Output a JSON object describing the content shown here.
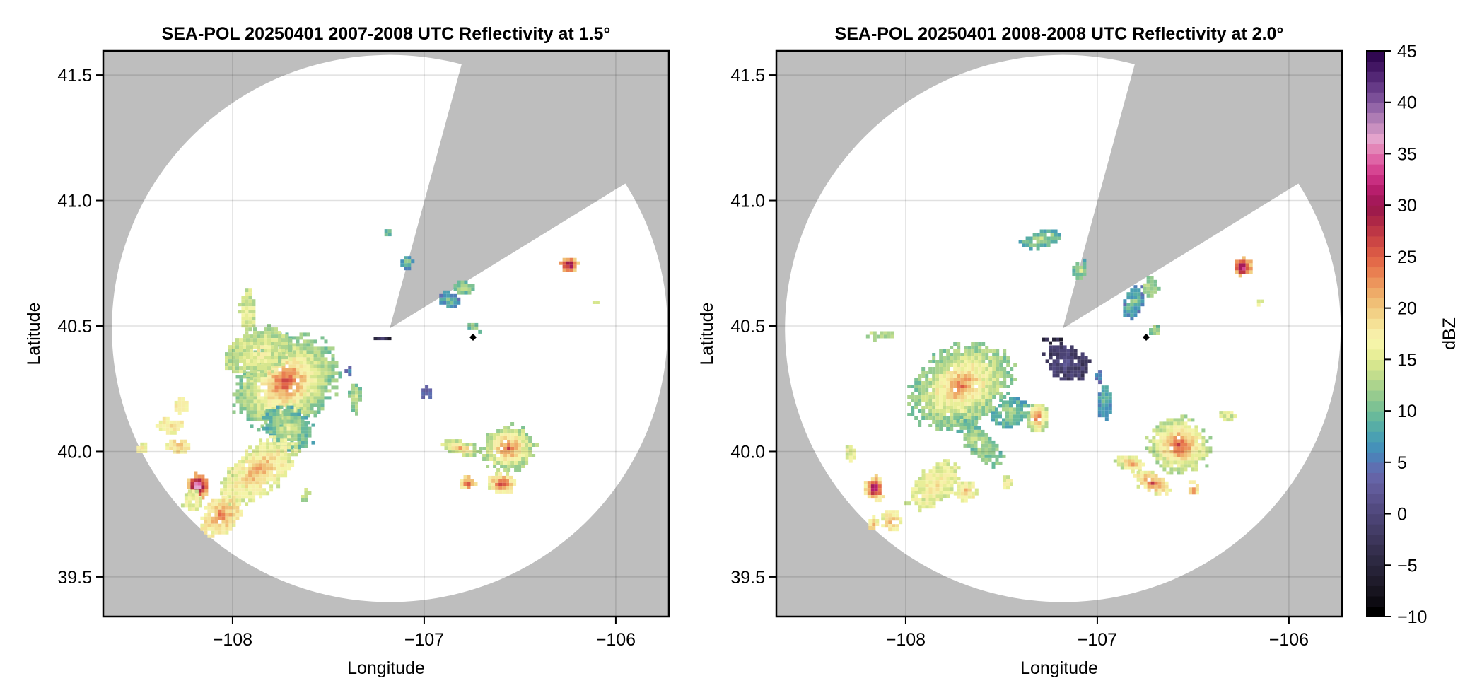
{
  "figure": {
    "colorbar": {
      "label": "dBZ",
      "range": [
        -10,
        45
      ],
      "ticks": [
        -10,
        -5,
        0,
        5,
        10,
        15,
        20,
        25,
        30,
        35,
        40,
        45
      ],
      "tick_labels": [
        "−10",
        "−5",
        "0",
        "5",
        "10",
        "15",
        "20",
        "25",
        "30",
        "35",
        "40",
        "45"
      ],
      "levels": 55,
      "colors": [
        "#000000",
        "#0d0b12",
        "#17141f",
        "#1f1b2b",
        "#262237",
        "#2d2942",
        "#352f4e",
        "#3d365b",
        "#443d67",
        "#4b4374",
        "#524a80",
        "#5a528d",
        "#615b9a",
        "#6564a7",
        "#5e6fb1",
        "#4e80b8",
        "#4591b9",
        "#4aa0b2",
        "#57ada6",
        "#68b99b",
        "#7ec293",
        "#96cb8f",
        "#acd48d",
        "#c2dd8d",
        "#d6e68e",
        "#e8ee98",
        "#f5f4a8",
        "#f7eea8",
        "#f5e196",
        "#f2d186",
        "#f0bf76",
        "#eeab68",
        "#ec955c",
        "#e97f51",
        "#e36a49",
        "#d95845",
        "#cc4644",
        "#bd3645",
        "#ad2746",
        "#9e1b4b",
        "#a5195a",
        "#b71e6c",
        "#c82e80",
        "#d64592",
        "#df64a6",
        "#e385b7",
        "#e4a3cc",
        "#c990c0",
        "#ae7cb4",
        "#9466a8",
        "#7b4f98",
        "#663a87",
        "#532775",
        "#421663",
        "#310852"
      ]
    },
    "panels": [
      {
        "title": "SEA-POL 20250401 2007-2008 UTC Reflectivity at 1.5°",
        "xlabel": "Longitude",
        "ylabel": "Latitude",
        "xticks": [
          -108,
          -107,
          -106
        ],
        "xtick_labels": [
          "−108",
          "−107",
          "−106"
        ],
        "yticks": [
          39.5,
          40.0,
          40.5,
          41.0,
          41.5
        ],
        "ytick_labels": [
          "39.5",
          "40.0",
          "40.5",
          "41.0",
          "41.5"
        ]
      },
      {
        "title": "SEA-POL 20250401 2008-2008 UTC Reflectivity at 2.0°",
        "xlabel": "Longitude",
        "ylabel": "Latitude",
        "xticks": [
          -108,
          -107,
          -106
        ],
        "xtick_labels": [
          "−108",
          "−107",
          "−106"
        ],
        "yticks": [
          39.5,
          40.0,
          40.5,
          41.0,
          41.5
        ],
        "ytick_labels": [
          "39.5",
          "40.0",
          "40.5",
          "41.0",
          "41.5"
        ]
      }
    ]
  },
  "chart_data": [
    {
      "type": "heatmap",
      "title": "SEA-POL 20250401 2007-2008 UTC Reflectivity at 1.5°",
      "xlabel": "Longitude",
      "ylabel": "Latitude",
      "xlim": [
        -108.675,
        -105.723
      ],
      "ylim": [
        39.342,
        41.596
      ],
      "grid": true,
      "colorbar": "right",
      "value_units": "dBZ",
      "background_missing_color": "#bebebe",
      "radar": {
        "center_lon": -107.18,
        "center_lat": 40.49,
        "range_lon_deg": 1.45,
        "range_lat_deg": 1.09,
        "blocked_sector_azimuth_deg": [
          15,
          58
        ]
      },
      "marker": {
        "symbol": "diamond",
        "lon": -106.745,
        "lat": 40.455,
        "color": "#000000"
      },
      "echoes": [
        {
          "lon": -107.73,
          "lat": 40.28,
          "dlon": 0.28,
          "dlat": 0.17,
          "tilt": -35,
          "peak": 26,
          "base": 11
        },
        {
          "lon": -107.88,
          "lat": 40.4,
          "dlon": 0.18,
          "dlat": 0.09,
          "tilt": -20,
          "peak": 17,
          "base": 13
        },
        {
          "lon": -107.93,
          "lat": 40.56,
          "dlon": 0.04,
          "dlat": 0.09,
          "tilt": 0,
          "peak": 16,
          "base": 14
        },
        {
          "lon": -107.72,
          "lat": 40.1,
          "dlon": 0.14,
          "dlat": 0.08,
          "tilt": 40,
          "peak": 15,
          "base": 9
        },
        {
          "lon": -107.87,
          "lat": 39.93,
          "dlon": 0.12,
          "dlat": 0.18,
          "tilt": 50,
          "peak": 22,
          "base": 15
        },
        {
          "lon": -108.07,
          "lat": 39.75,
          "dlon": 0.09,
          "dlat": 0.09,
          "tilt": 40,
          "peak": 24,
          "base": 17
        },
        {
          "lon": -108.19,
          "lat": 39.87,
          "dlon": 0.06,
          "dlat": 0.05,
          "tilt": 0,
          "peak": 40,
          "base": 20
        },
        {
          "lon": -108.22,
          "lat": 39.81,
          "dlon": 0.05,
          "dlat": 0.04,
          "tilt": 0,
          "peak": 17,
          "base": 15
        },
        {
          "lon": -108.29,
          "lat": 40.03,
          "dlon": 0.06,
          "dlat": 0.03,
          "tilt": 0,
          "peak": 21,
          "base": 17
        },
        {
          "lon": -108.33,
          "lat": 40.11,
          "dlon": 0.07,
          "dlat": 0.03,
          "tilt": 0,
          "peak": 19,
          "base": 17
        },
        {
          "lon": -108.27,
          "lat": 40.19,
          "dlon": 0.04,
          "dlat": 0.03,
          "tilt": 0,
          "peak": 20,
          "base": 17
        },
        {
          "lon": -108.48,
          "lat": 40.02,
          "dlon": 0.03,
          "dlat": 0.02,
          "tilt": 0,
          "peak": 17,
          "base": 16
        },
        {
          "lon": -107.37,
          "lat": 40.22,
          "dlon": 0.03,
          "dlat": 0.06,
          "tilt": 0,
          "peak": 16,
          "base": 11
        },
        {
          "lon": -107.4,
          "lat": 40.33,
          "dlon": 0.02,
          "dlat": 0.02,
          "tilt": 0,
          "peak": 5,
          "base": 4
        },
        {
          "lon": -107.0,
          "lat": 40.24,
          "dlon": 0.03,
          "dlat": 0.03,
          "tilt": 0,
          "peak": 5,
          "base": 4
        },
        {
          "lon": -106.57,
          "lat": 40.02,
          "dlon": 0.14,
          "dlat": 0.09,
          "tilt": 0,
          "peak": 26,
          "base": 12
        },
        {
          "lon": -106.82,
          "lat": 40.02,
          "dlon": 0.1,
          "dlat": 0.03,
          "tilt": 10,
          "peak": 22,
          "base": 13
        },
        {
          "lon": -106.6,
          "lat": 39.88,
          "dlon": 0.08,
          "dlat": 0.04,
          "tilt": 0,
          "peak": 28,
          "base": 16
        },
        {
          "lon": -106.78,
          "lat": 39.88,
          "dlon": 0.04,
          "dlat": 0.03,
          "tilt": 0,
          "peak": 25,
          "base": 18
        },
        {
          "lon": -106.25,
          "lat": 40.75,
          "dlon": 0.05,
          "dlat": 0.035,
          "tilt": 0,
          "peak": 33,
          "base": 20
        },
        {
          "lon": -106.12,
          "lat": 40.6,
          "dlon": 0.015,
          "dlat": 0.012,
          "tilt": 0,
          "peak": 16,
          "base": 16
        },
        {
          "lon": -106.88,
          "lat": 40.61,
          "dlon": 0.06,
          "dlat": 0.03,
          "tilt": 20,
          "peak": 12,
          "base": 6
        },
        {
          "lon": -106.8,
          "lat": 40.66,
          "dlon": 0.05,
          "dlat": 0.025,
          "tilt": 0,
          "peak": 14,
          "base": 10
        },
        {
          "lon": -106.74,
          "lat": 40.5,
          "dlon": 0.04,
          "dlat": 0.015,
          "tilt": 15,
          "peak": 13,
          "base": 10
        },
        {
          "lon": -107.1,
          "lat": 40.76,
          "dlon": 0.03,
          "dlat": 0.025,
          "tilt": 0,
          "peak": 14,
          "base": 7
        },
        {
          "lon": -107.23,
          "lat": 40.46,
          "dlon": 0.04,
          "dlat": 0.01,
          "tilt": 0,
          "peak": 0,
          "base": -5
        },
        {
          "lon": -107.2,
          "lat": 40.88,
          "dlon": 0.02,
          "dlat": 0.01,
          "tilt": 0,
          "peak": 12,
          "base": 10
        },
        {
          "lon": -107.63,
          "lat": 39.83,
          "dlon": 0.02,
          "dlat": 0.03,
          "tilt": 30,
          "peak": 15,
          "base": 13
        }
      ]
    },
    {
      "type": "heatmap",
      "title": "SEA-POL 20250401 2008-2008 UTC Reflectivity at 2.0°",
      "xlabel": "Longitude",
      "ylabel": "Latitude",
      "xlim": [
        -108.675,
        -105.723
      ],
      "ylim": [
        39.342,
        41.596
      ],
      "grid": true,
      "colorbar": "right",
      "value_units": "dBZ",
      "background_missing_color": "#bebebe",
      "radar": {
        "center_lon": -107.18,
        "center_lat": 40.49,
        "range_lon_deg": 1.45,
        "range_lat_deg": 1.09,
        "blocked_sector_azimuth_deg": [
          15,
          58
        ]
      },
      "marker": {
        "symbol": "diamond",
        "lon": -106.745,
        "lat": 40.455,
        "color": "#000000"
      },
      "echoes": [
        {
          "lon": -107.72,
          "lat": 40.27,
          "dlon": 0.28,
          "dlat": 0.15,
          "tilt": -30,
          "peak": 24,
          "base": 11
        },
        {
          "lon": -107.32,
          "lat": 40.14,
          "dlon": 0.06,
          "dlat": 0.06,
          "tilt": 0,
          "peak": 26,
          "base": 13
        },
        {
          "lon": -107.46,
          "lat": 40.16,
          "dlon": 0.1,
          "dlat": 0.06,
          "tilt": -10,
          "peak": 14,
          "base": 8
        },
        {
          "lon": -107.62,
          "lat": 40.04,
          "dlon": 0.16,
          "dlat": 0.05,
          "tilt": 45,
          "peak": 14,
          "base": 10
        },
        {
          "lon": -107.86,
          "lat": 39.87,
          "dlon": 0.09,
          "dlat": 0.12,
          "tilt": 50,
          "peak": 18,
          "base": 15
        },
        {
          "lon": -108.08,
          "lat": 39.73,
          "dlon": 0.05,
          "dlat": 0.05,
          "tilt": 0,
          "peak": 23,
          "base": 16
        },
        {
          "lon": -108.17,
          "lat": 39.86,
          "dlon": 0.05,
          "dlat": 0.05,
          "tilt": 0,
          "peak": 38,
          "base": 18
        },
        {
          "lon": -108.18,
          "lat": 39.72,
          "dlon": 0.03,
          "dlat": 0.03,
          "tilt": 0,
          "peak": 21,
          "base": 17
        },
        {
          "lon": -108.3,
          "lat": 40.0,
          "dlon": 0.03,
          "dlat": 0.03,
          "tilt": 0,
          "peak": 16,
          "base": 15
        },
        {
          "lon": -108.14,
          "lat": 40.47,
          "dlon": 0.08,
          "dlat": 0.02,
          "tilt": 0,
          "peak": 14,
          "base": 12
        },
        {
          "lon": -107.17,
          "lat": 40.36,
          "dlon": 0.12,
          "dlat": 0.07,
          "tilt": 30,
          "peak": 2,
          "base": -2
        },
        {
          "lon": -106.97,
          "lat": 40.2,
          "dlon": 0.04,
          "dlat": 0.07,
          "tilt": 0,
          "peak": 10,
          "base": 7
        },
        {
          "lon": -107.0,
          "lat": 40.3,
          "dlon": 0.02,
          "dlat": 0.03,
          "tilt": 0,
          "peak": 5,
          "base": 5
        },
        {
          "lon": -106.58,
          "lat": 40.03,
          "dlon": 0.16,
          "dlat": 0.11,
          "tilt": 15,
          "peak": 27,
          "base": 13
        },
        {
          "lon": -106.83,
          "lat": 39.96,
          "dlon": 0.08,
          "dlat": 0.03,
          "tilt": 15,
          "peak": 22,
          "base": 14
        },
        {
          "lon": -106.72,
          "lat": 39.88,
          "dlon": 0.1,
          "dlat": 0.04,
          "tilt": 25,
          "peak": 26,
          "base": 16
        },
        {
          "lon": -106.51,
          "lat": 39.86,
          "dlon": 0.03,
          "dlat": 0.03,
          "tilt": 0,
          "peak": 26,
          "base": 18
        },
        {
          "lon": -106.33,
          "lat": 40.15,
          "dlon": 0.04,
          "dlat": 0.025,
          "tilt": 0,
          "peak": 16,
          "base": 14
        },
        {
          "lon": -107.69,
          "lat": 39.85,
          "dlon": 0.06,
          "dlat": 0.04,
          "tilt": 0,
          "peak": 20,
          "base": 16
        },
        {
          "lon": -107.48,
          "lat": 39.88,
          "dlon": 0.03,
          "dlat": 0.03,
          "tilt": 0,
          "peak": 17,
          "base": 15
        },
        {
          "lon": -106.25,
          "lat": 40.74,
          "dlon": 0.05,
          "dlat": 0.04,
          "tilt": 0,
          "peak": 37,
          "base": 20
        },
        {
          "lon": -106.16,
          "lat": 40.6,
          "dlon": 0.015,
          "dlat": 0.015,
          "tilt": 0,
          "peak": 16,
          "base": 16
        },
        {
          "lon": -106.82,
          "lat": 40.6,
          "dlon": 0.05,
          "dlat": 0.07,
          "tilt": 20,
          "peak": 12,
          "base": 6
        },
        {
          "lon": -106.73,
          "lat": 40.66,
          "dlon": 0.04,
          "dlat": 0.04,
          "tilt": 0,
          "peak": 14,
          "base": 11
        },
        {
          "lon": -106.71,
          "lat": 40.49,
          "dlon": 0.03,
          "dlat": 0.02,
          "tilt": 0,
          "peak": 13,
          "base": 11
        },
        {
          "lon": -107.1,
          "lat": 40.73,
          "dlon": 0.04,
          "dlat": 0.04,
          "tilt": 0,
          "peak": 16,
          "base": 9
        },
        {
          "lon": -107.31,
          "lat": 40.85,
          "dlon": 0.12,
          "dlat": 0.03,
          "tilt": -15,
          "peak": 14,
          "base": 9
        },
        {
          "lon": -107.25,
          "lat": 40.45,
          "dlon": 0.06,
          "dlat": 0.01,
          "tilt": 0,
          "peak": -2,
          "base": -5
        }
      ]
    }
  ]
}
